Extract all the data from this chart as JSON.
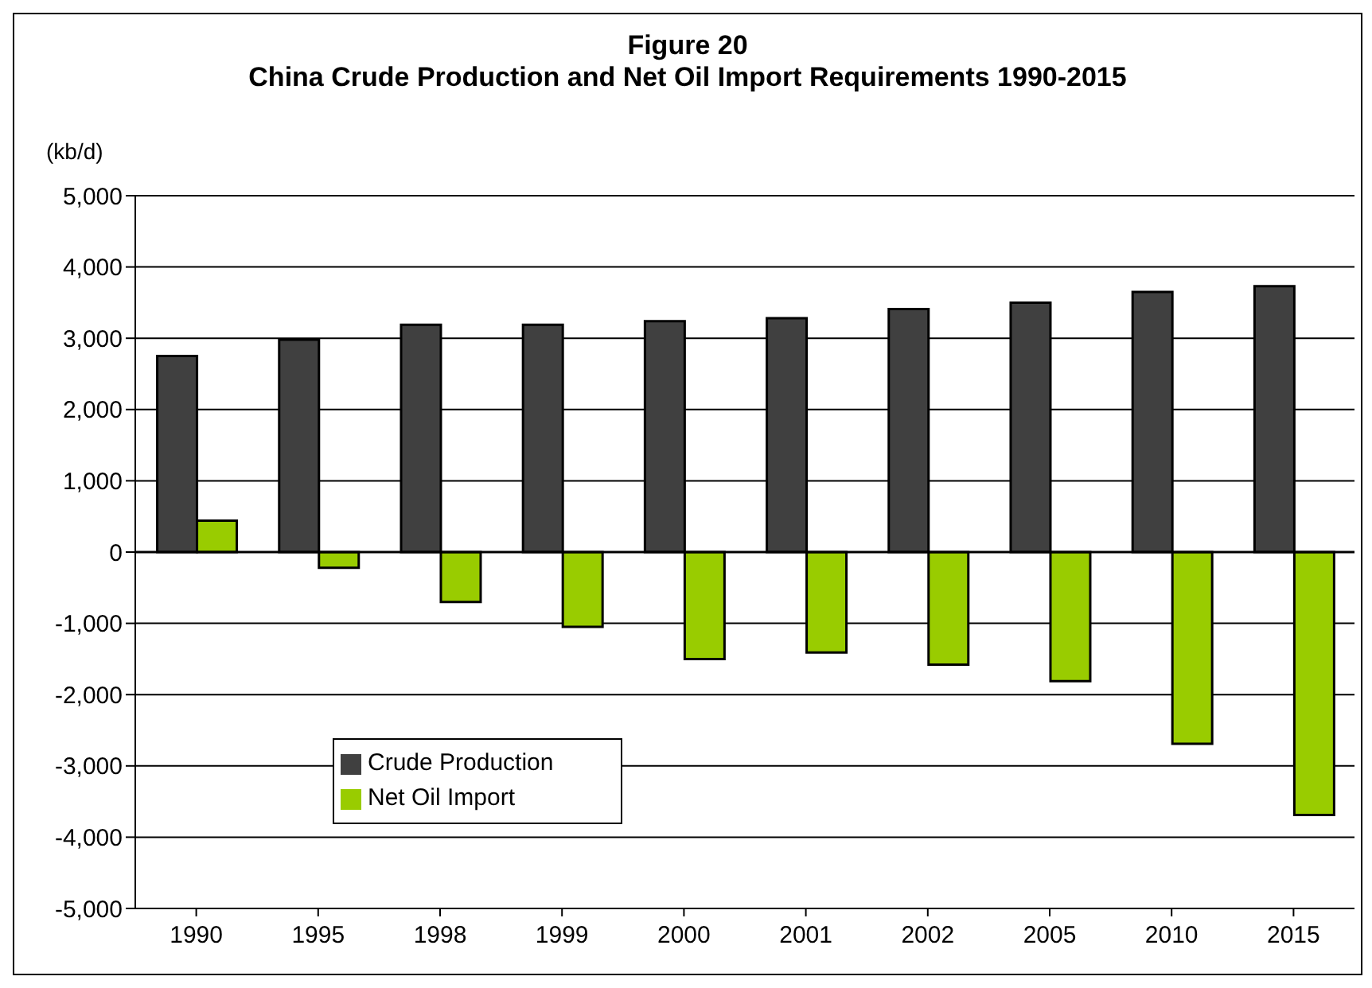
{
  "chart_data": {
    "type": "bar",
    "title": "Figure 20",
    "subtitle": "China Crude Production and Net Oil Import Requirements 1990-2015",
    "ylabel": "(kb/d)",
    "categories": [
      "1990",
      "1995",
      "1998",
      "1999",
      "2000",
      "2001",
      "2002",
      "2005",
      "2010",
      "2015"
    ],
    "series": [
      {
        "name": "Crude Production",
        "color": "#404040",
        "values": [
          2750,
          2980,
          3190,
          3190,
          3240,
          3280,
          3410,
          3500,
          3650,
          3730
        ]
      },
      {
        "name": "Net Oil Import",
        "color": "#99cc00",
        "values": [
          440,
          -220,
          -700,
          -1050,
          -1500,
          -1410,
          -1580,
          -1810,
          -2690,
          -3690
        ]
      }
    ],
    "ylim": [
      -5000,
      5000
    ],
    "yticks": [
      {
        "value": -5000,
        "label": "-5,000"
      },
      {
        "value": -4000,
        "label": "-4,000"
      },
      {
        "value": -3000,
        "label": "-3,000"
      },
      {
        "value": -2000,
        "label": "-2,000"
      },
      {
        "value": -1000,
        "label": "-1,000"
      },
      0,
      {
        "value": 1000,
        "label": "1,000"
      },
      {
        "value": 2000,
        "label": "2,000"
      },
      {
        "value": 3000,
        "label": "3,000"
      },
      {
        "value": 4000,
        "label": "4,000"
      },
      {
        "value": 5000,
        "label": "5,000"
      }
    ],
    "grid": "y",
    "legend": "bottom left"
  }
}
